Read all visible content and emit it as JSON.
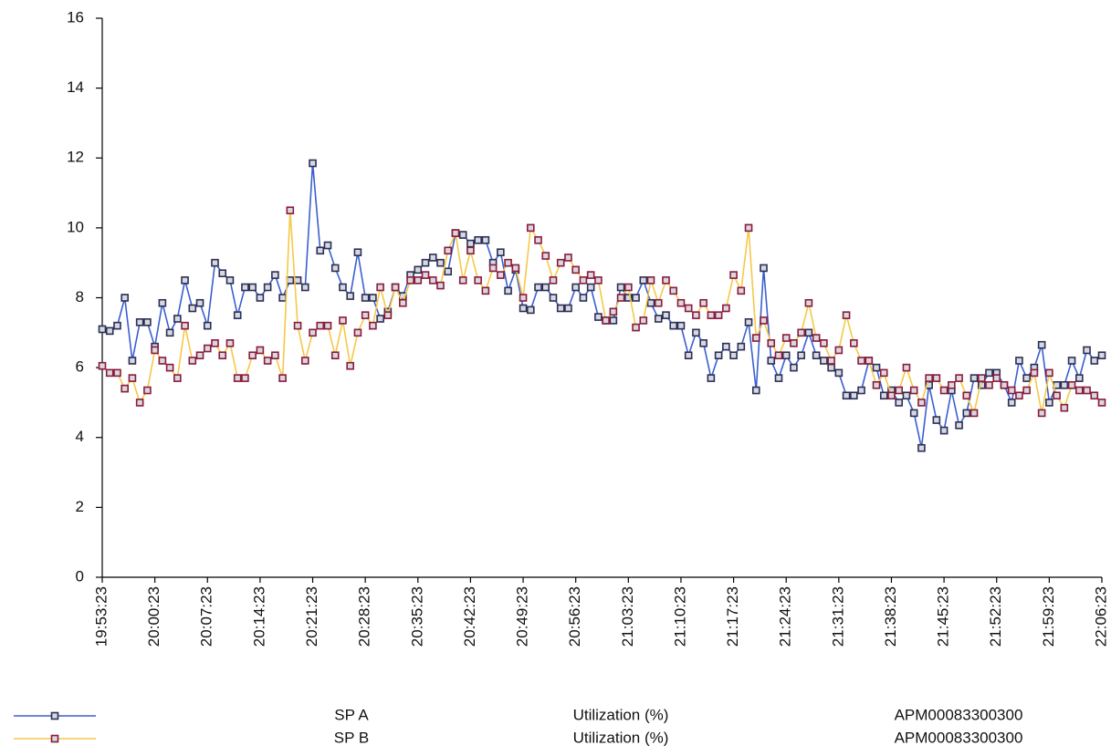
{
  "chart_data": {
    "type": "line",
    "categories": [
      "19:53:23",
      null,
      null,
      null,
      null,
      null,
      null,
      "20:00:23",
      null,
      null,
      null,
      null,
      null,
      null,
      "20:07:23",
      null,
      null,
      null,
      null,
      null,
      null,
      "20:14:23",
      null,
      null,
      null,
      null,
      null,
      null,
      "20:21:23",
      null,
      null,
      null,
      null,
      null,
      null,
      "20:28:23",
      null,
      null,
      null,
      null,
      null,
      null,
      "20:35:23",
      null,
      null,
      null,
      null,
      null,
      null,
      "20:42:23",
      null,
      null,
      null,
      null,
      null,
      null,
      "20:49:23",
      null,
      null,
      null,
      null,
      null,
      null,
      "20:56:23",
      null,
      null,
      null,
      null,
      null,
      null,
      "21:03:23",
      null,
      null,
      null,
      null,
      null,
      null,
      "21:10:23",
      null,
      null,
      null,
      null,
      null,
      null,
      "21:17:23",
      null,
      null,
      null,
      null,
      null,
      null,
      "21:24:23",
      null,
      null,
      null,
      null,
      null,
      null,
      "21:31:23",
      null,
      null,
      null,
      null,
      null,
      null,
      "21:38:23",
      null,
      null,
      null,
      null,
      null,
      null,
      "21:45:23",
      null,
      null,
      null,
      null,
      null,
      null,
      "21:52:23",
      null,
      null,
      null,
      null,
      null,
      null,
      "21:59:23",
      null,
      null,
      null,
      null,
      null,
      null,
      "22:06:23"
    ],
    "series": [
      {
        "name": "SP A",
        "metric": "Utilization (%)",
        "object": "APM00083300300",
        "color": "#3b5fd0",
        "marker_color": "#2a2f55",
        "values": [
          7.1,
          7.05,
          7.2,
          8.0,
          6.2,
          7.3,
          7.3,
          6.6,
          7.85,
          7.0,
          7.4,
          8.5,
          7.7,
          7.85,
          7.2,
          9.0,
          8.7,
          8.5,
          7.5,
          8.3,
          8.3,
          8.0,
          8.3,
          8.65,
          8.0,
          8.5,
          8.5,
          8.3,
          11.85,
          9.35,
          9.5,
          8.85,
          8.3,
          8.05,
          9.3,
          8.0,
          8.0,
          7.4,
          7.6,
          8.3,
          8.05,
          8.65,
          8.8,
          9.0,
          9.15,
          9.0,
          8.75,
          9.85,
          9.8,
          9.55,
          9.65,
          9.65,
          9.0,
          9.3,
          8.2,
          8.8,
          7.7,
          7.65,
          8.3,
          8.3,
          8.0,
          7.7,
          7.7,
          8.3,
          8.0,
          8.3,
          7.45,
          7.35,
          7.35,
          8.3,
          8.0,
          8.0,
          8.5,
          7.85,
          7.4,
          7.5,
          7.2,
          7.2,
          6.35,
          7.0,
          6.7,
          5.7,
          6.35,
          6.6,
          6.35,
          6.6,
          7.3,
          5.35,
          8.85,
          6.2,
          5.7,
          6.35,
          6.0,
          6.35,
          7.0,
          6.35,
          6.2,
          6.0,
          5.85,
          5.2,
          5.2,
          5.35,
          6.2,
          6.0,
          5.2,
          5.35,
          5.0,
          5.2,
          4.7,
          3.7,
          5.5,
          4.5,
          4.2,
          5.35,
          4.35,
          4.7,
          5.7,
          5.5,
          5.85,
          5.85,
          5.5,
          5.0,
          6.2,
          5.7,
          6.0,
          6.65,
          5.0,
          5.5,
          5.5,
          6.2,
          5.7,
          6.5,
          6.2,
          6.35
        ]
      },
      {
        "name": "SP B",
        "metric": "Utilization (%)",
        "object": "APM00083300300",
        "color": "#f5c848",
        "marker_color": "#8b1a3a",
        "values": [
          6.05,
          5.85,
          5.85,
          5.4,
          5.7,
          5.0,
          5.35,
          6.5,
          6.2,
          6.0,
          5.7,
          7.2,
          6.2,
          6.35,
          6.55,
          6.7,
          6.35,
          6.7,
          5.7,
          5.7,
          6.35,
          6.5,
          6.2,
          6.35,
          5.7,
          10.5,
          7.2,
          6.2,
          7.0,
          7.2,
          7.2,
          6.35,
          7.35,
          6.05,
          7.0,
          7.5,
          7.2,
          8.3,
          7.5,
          8.3,
          7.85,
          8.5,
          8.5,
          8.65,
          8.5,
          8.35,
          9.35,
          9.85,
          8.5,
          9.35,
          8.5,
          8.2,
          8.85,
          8.65,
          9.0,
          8.85,
          8.0,
          10.0,
          9.65,
          9.2,
          8.5,
          9.0,
          9.15,
          8.8,
          8.5,
          8.65,
          8.5,
          7.35,
          7.6,
          8.0,
          8.3,
          7.15,
          7.35,
          8.5,
          7.85,
          8.5,
          8.2,
          7.85,
          7.7,
          7.5,
          7.85,
          7.5,
          7.5,
          7.7,
          8.65,
          8.2,
          10.0,
          6.85,
          7.35,
          6.7,
          6.35,
          6.85,
          6.7,
          7.0,
          7.85,
          6.85,
          6.7,
          6.2,
          6.5,
          7.5,
          6.7,
          6.2,
          6.2,
          5.5,
          5.85,
          5.2,
          5.35,
          6.0,
          5.35,
          5.0,
          5.7,
          5.7,
          5.35,
          5.5,
          5.7,
          5.2,
          4.7,
          5.7,
          5.5,
          5.7,
          5.5,
          5.35,
          5.2,
          5.35,
          5.85,
          4.7,
          5.85,
          5.2,
          4.85,
          5.5,
          5.35,
          5.35,
          5.2,
          5.0
        ]
      }
    ],
    "ylim": [
      0,
      16
    ],
    "yticks": [
      0,
      2,
      4,
      6,
      8,
      10,
      12,
      14,
      16
    ],
    "grid": false
  }
}
